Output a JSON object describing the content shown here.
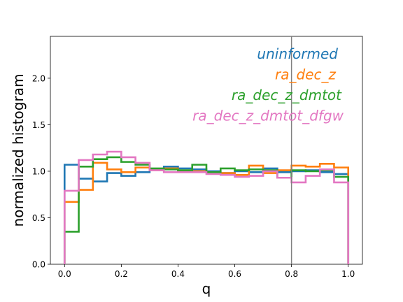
{
  "chart_data": {
    "type": "line",
    "subtype": "step-histogram",
    "xlabel": "q",
    "ylabel": "normalized histogram",
    "xlim": [
      -0.05,
      1.05
    ],
    "ylim": [
      0.0,
      2.45
    ],
    "xticks": [
      "0.0",
      "0.2",
      "0.4",
      "0.6",
      "0.8",
      "1.0"
    ],
    "yticks": [
      "0.0",
      "0.5",
      "1.0",
      "1.5",
      "2.0"
    ],
    "grid": false,
    "legend_placement": "top-right",
    "bin_edges": [
      0.0,
      0.05,
      0.1,
      0.15,
      0.2,
      0.25,
      0.3,
      0.35,
      0.4,
      0.45,
      0.5,
      0.55,
      0.6,
      0.65,
      0.7,
      0.75,
      0.8,
      0.85,
      0.9,
      0.95,
      1.0
    ],
    "vline": {
      "x": 0.8,
      "color": "#808080"
    },
    "series": [
      {
        "name": "uninformed",
        "color": "#1f77b4",
        "values": [
          1.07,
          0.92,
          0.89,
          0.98,
          0.95,
          0.99,
          1.02,
          1.05,
          1.03,
          1.02,
          1.0,
          0.98,
          1.0,
          0.99,
          1.03,
          0.99,
          1.0,
          1.01,
          0.99,
          0.97
        ]
      },
      {
        "name": "ra_dec_z",
        "color": "#ff7f0e",
        "values": [
          0.67,
          0.8,
          1.09,
          1.02,
          0.99,
          1.04,
          1.01,
          1.03,
          1.0,
          1.0,
          0.99,
          0.98,
          0.96,
          1.06,
          0.98,
          1.01,
          1.06,
          1.05,
          1.08,
          1.04
        ]
      },
      {
        "name": "ra_dec_z_dmtot",
        "color": "#2ca02c",
        "values": [
          0.35,
          1.05,
          1.13,
          1.15,
          1.1,
          1.07,
          1.03,
          1.02,
          1.01,
          1.07,
          0.99,
          1.03,
          1.01,
          1.02,
          1.01,
          0.93,
          1.01,
          1.0,
          1.01,
          0.94
        ]
      },
      {
        "name": "ra_dec_z_dmtot_dfgw",
        "color": "#e377c2",
        "values": [
          0.79,
          1.12,
          1.18,
          1.21,
          1.15,
          1.09,
          1.01,
          0.99,
          0.99,
          0.99,
          0.97,
          0.96,
          0.94,
          0.95,
          1.0,
          0.93,
          0.88,
          0.95,
          1.02,
          0.88
        ]
      }
    ]
  }
}
